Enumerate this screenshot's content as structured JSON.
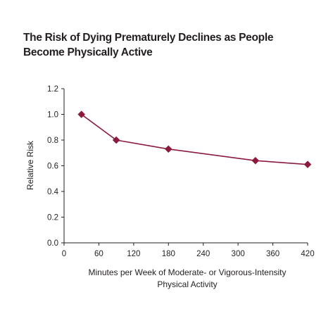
{
  "title_lines": [
    "The Risk of Dying Prematurely Declines as People",
    "Become Physically Active"
  ],
  "chart_data": {
    "type": "line",
    "title": "The Risk of Dying Prematurely Declines as People Become Physically Active",
    "xlabel_lines": [
      "Minutes per Week of Moderate- or Vigorous-Intensity",
      "Physical Activity"
    ],
    "ylabel": "Relative Risk",
    "xlim": [
      0,
      420
    ],
    "ylim": [
      0.0,
      1.2
    ],
    "xticks": [
      0,
      60,
      120,
      180,
      240,
      300,
      360,
      420
    ],
    "xtick_labels": [
      "0",
      "60",
      "120",
      "180",
      "240",
      "300",
      "360",
      "420"
    ],
    "yticks": [
      0.0,
      0.2,
      0.4,
      0.6,
      0.8,
      1.0,
      1.2
    ],
    "ytick_labels": [
      "0.0",
      "0.2",
      "0.4",
      "0.6",
      "0.8",
      "1.0",
      "1.2"
    ],
    "grid": false,
    "series": [
      {
        "x": [
          30,
          90,
          180,
          330,
          420
        ],
        "y": [
          1.0,
          0.8,
          0.73,
          0.64,
          0.61
        ],
        "color": "#8b1a3d",
        "marker": "diamond"
      }
    ]
  }
}
